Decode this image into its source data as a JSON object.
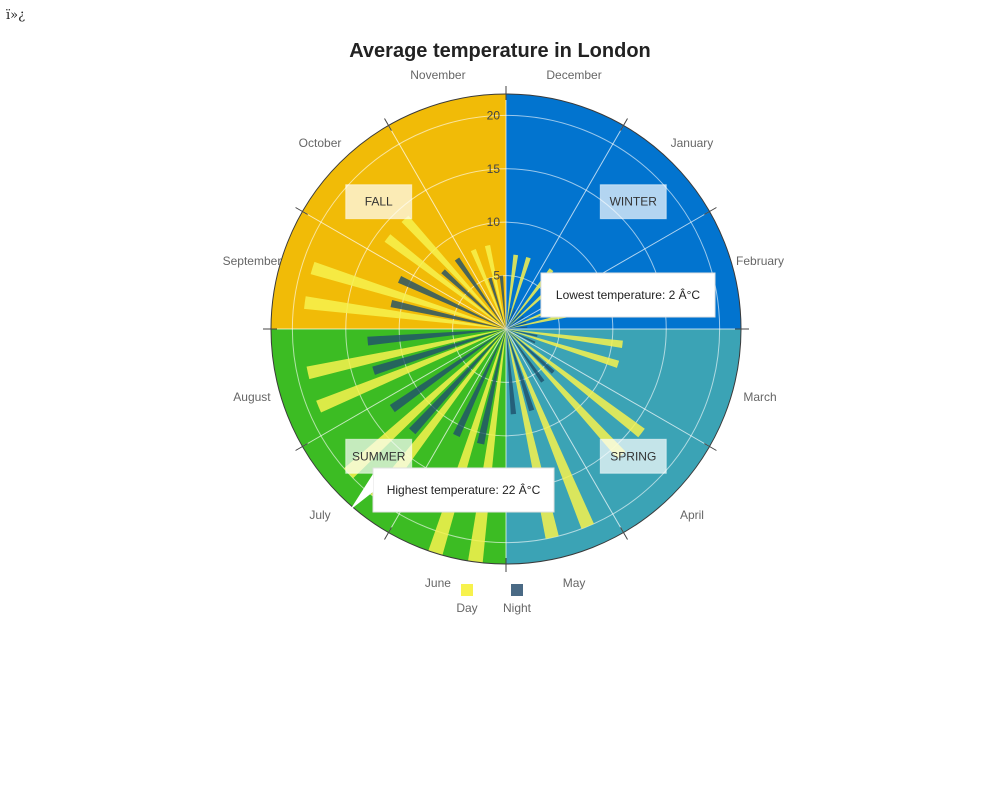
{
  "page": {
    "bom_text": "ï»¿"
  },
  "chart_data": {
    "type": "polar-bar",
    "title": "Average temperature in London",
    "months": [
      "December",
      "January",
      "February",
      "March",
      "April",
      "May",
      "June",
      "July",
      "August",
      "September",
      "October",
      "November"
    ],
    "radial_ticks": [
      5,
      10,
      15,
      20
    ],
    "rmax": 22,
    "series": [
      {
        "name": "Day",
        "color": "#f7f24d",
        "values": [
          7,
          7,
          10,
          11,
          16,
          20,
          22,
          20,
          19,
          19,
          14,
          8
        ]
      },
      {
        "name": "Night",
        "color": "#1f4f6b",
        "values": [
          2,
          2,
          2,
          3,
          6,
          8,
          11,
          13,
          13,
          11,
          8,
          5
        ]
      }
    ],
    "seasons": [
      {
        "label": "WINTER",
        "color": "#0274cf",
        "months": [
          "December",
          "January",
          "February"
        ]
      },
      {
        "label": "SPRING",
        "color": "#3ba3b5",
        "months": [
          "March",
          "April",
          "May"
        ]
      },
      {
        "label": "SUMMER",
        "color": "#3cbc23",
        "months": [
          "June",
          "July",
          "August"
        ]
      },
      {
        "label": "FALL",
        "color": "#f1bb07",
        "months": [
          "September",
          "October",
          "November"
        ]
      }
    ],
    "annotations": [
      {
        "text": "Lowest temperature: 2 Â°C"
      },
      {
        "text": "Highest temperature: 22 Â°C"
      }
    ]
  }
}
